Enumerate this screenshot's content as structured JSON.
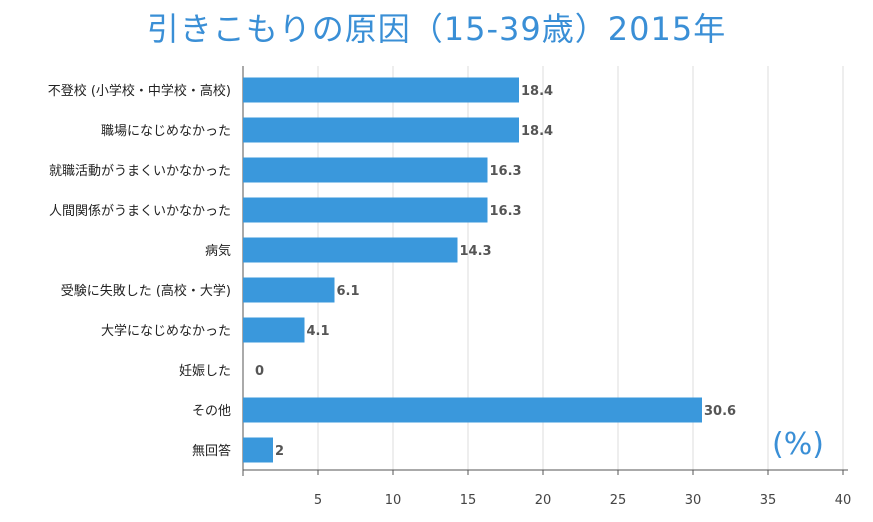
{
  "chart_data": {
    "type": "bar",
    "orientation": "horizontal",
    "title": "引きこもりの原因（15-39歳）2015年",
    "categories": [
      "不登校 (小学校・中学校・高校)",
      "職場になじめなかった",
      "就職活動がうまくいかなかった",
      "人間関係がうまくいかなかった",
      "病気",
      "受験に失敗した (高校・大学)",
      "大学になじめなかった",
      "妊娠した",
      "その他",
      "無回答"
    ],
    "values": [
      18.4,
      18.4,
      16.3,
      16.3,
      14.3,
      6.1,
      4.1,
      0,
      30.6,
      2
    ],
    "value_labels": [
      "18.4",
      "18.4",
      "16.3",
      "16.3",
      "14.3",
      "6.1",
      "4.1",
      "0",
      "30.6",
      "2"
    ],
    "xlim": [
      0,
      40
    ],
    "xticks": [
      5,
      10,
      15,
      20,
      25,
      30,
      35,
      40
    ],
    "unit_label": "(%)",
    "grid": true,
    "bar_color": "#3a98dc",
    "grid_color": "#dddddd",
    "title_color": "#3a8fd6"
  }
}
